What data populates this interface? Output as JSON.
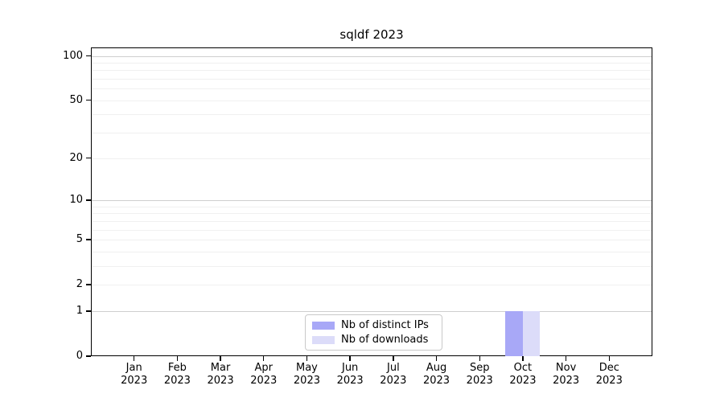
{
  "chart_data": {
    "type": "bar",
    "title": "sqldf 2023",
    "xlabel": "",
    "ylabel": "",
    "categories": [
      "Jan 2023",
      "Feb 2023",
      "Mar 2023",
      "Apr 2023",
      "May 2023",
      "Jun 2023",
      "Jul 2023",
      "Aug 2023",
      "Sep 2023",
      "Oct 2023",
      "Nov 2023",
      "Dec 2023"
    ],
    "series": [
      {
        "name": "Nb of distinct IPs",
        "color": "#a8a8f7",
        "values": [
          0,
          0,
          0,
          0,
          0,
          0,
          0,
          0,
          0,
          1,
          0,
          0
        ]
      },
      {
        "name": "Nb of downloads",
        "color": "#dcdcf9",
        "values": [
          0,
          0,
          0,
          0,
          0,
          0,
          0,
          0,
          0,
          1,
          0,
          0
        ]
      }
    ],
    "yscale": "log1p",
    "ylim": [
      0,
      114
    ],
    "yticks": [
      0,
      1,
      2,
      5,
      10,
      20,
      50,
      100
    ],
    "gridlines": {
      "major": [
        1,
        10,
        100
      ],
      "minor": [
        2,
        3,
        4,
        5,
        6,
        7,
        8,
        9,
        20,
        30,
        40,
        50,
        60,
        70,
        80,
        90
      ]
    },
    "bar_width_fraction": 0.4,
    "legend": {
      "position": "lower center"
    },
    "colors": {
      "background": "#ffffff",
      "axis": "#000000",
      "text": "#000000",
      "grid_major": "#cfcfcf",
      "grid_minor": "#f0f0f0",
      "legend_border": "#c9c9c9"
    }
  }
}
